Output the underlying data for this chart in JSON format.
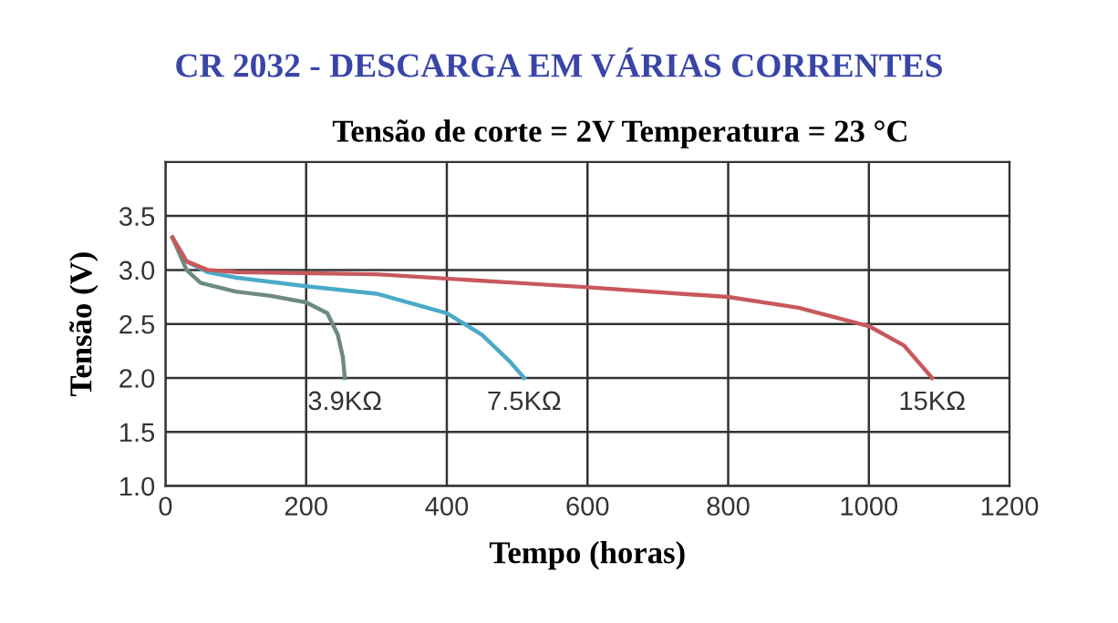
{
  "chart_data": {
    "type": "line",
    "title": "CR 2032 - DESCARGA EM VÁRIAS CORRENTES",
    "subtitle": "Tensão de corte = 2V Temperatura = 23 °C",
    "xlabel": "Tempo (horas)",
    "ylabel": "Tensão (V)",
    "xlim": [
      0,
      1200
    ],
    "xticks": [
      0,
      200,
      400,
      600,
      800,
      1000,
      1200
    ],
    "ylim": [
      1.0,
      4.0
    ],
    "yticks": [
      {
        "value": 1.0,
        "label": "1.0"
      },
      1.5,
      {
        "value": 2.0,
        "label": "2.0"
      },
      2.5,
      {
        "value": 3.0,
        "label": "3.0"
      },
      3.5,
      {
        "value": 4.0,
        "label": null
      }
    ],
    "grid": true,
    "legend": false,
    "marker": "none",
    "line_style": "solid",
    "series": [
      {
        "name": "3.9KΩ",
        "color": "#6f8a80",
        "x": [
          10,
          20,
          30,
          50,
          100,
          150,
          200,
          230,
          245,
          252,
          255
        ],
        "values": [
          3.3,
          3.15,
          3.0,
          2.88,
          2.8,
          2.76,
          2.7,
          2.6,
          2.4,
          2.2,
          2.0
        ]
      },
      {
        "name": "7.5KΩ",
        "color": "#4aaac8",
        "x": [
          10,
          30,
          60,
          100,
          200,
          300,
          400,
          450,
          490,
          510
        ],
        "values": [
          3.3,
          3.08,
          2.98,
          2.93,
          2.85,
          2.78,
          2.6,
          2.4,
          2.15,
          2.0
        ]
      },
      {
        "name": "15KΩ",
        "color": "#c8585c",
        "x": [
          10,
          30,
          60,
          100,
          300,
          500,
          600,
          800,
          900,
          1000,
          1050,
          1090
        ],
        "values": [
          3.3,
          3.08,
          3.0,
          2.98,
          2.96,
          2.88,
          2.84,
          2.75,
          2.65,
          2.48,
          2.3,
          2.0
        ]
      }
    ]
  }
}
